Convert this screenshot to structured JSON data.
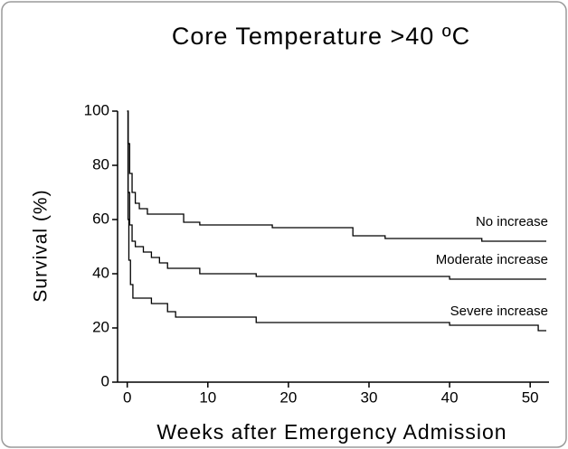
{
  "chart_data": {
    "type": "step",
    "title": "Core Temperature >40 ºC",
    "x_label": "Weeks after Emergency Admission",
    "y_label": "Survival (%)",
    "xlim": [
      -1.2,
      52
    ],
    "xticks": [
      0,
      10,
      20,
      30,
      40,
      50
    ],
    "ylim": [
      0,
      100
    ],
    "yticks": [
      0,
      20,
      40,
      60,
      80,
      100
    ],
    "series": [
      {
        "name": "No increase",
        "color": "#000000",
        "x": [
          0,
          0.1,
          0.3,
          0.6,
          1,
          1.5,
          2.5,
          7,
          9,
          18,
          28,
          32,
          44,
          52
        ],
        "values": [
          100,
          88,
          77,
          70,
          66,
          64,
          62,
          59,
          58,
          57,
          54,
          53,
          52,
          52
        ]
      },
      {
        "name": "Moderate increase",
        "color": "#000000",
        "x": [
          0,
          0.1,
          0.3,
          0.6,
          1,
          2,
          3,
          4,
          5,
          9,
          16,
          40,
          52
        ],
        "values": [
          100,
          70,
          58,
          52,
          50,
          48,
          46,
          44,
          42,
          40,
          39,
          38,
          38
        ]
      },
      {
        "name": "Severe  increase",
        "color": "#000000",
        "x": [
          0,
          0.1,
          0.2,
          0.4,
          0.7,
          3,
          5,
          6,
          16,
          40,
          51,
          52
        ],
        "values": [
          100,
          60,
          45,
          36,
          31,
          29,
          26,
          24,
          22,
          21,
          19,
          19
        ]
      }
    ]
  }
}
